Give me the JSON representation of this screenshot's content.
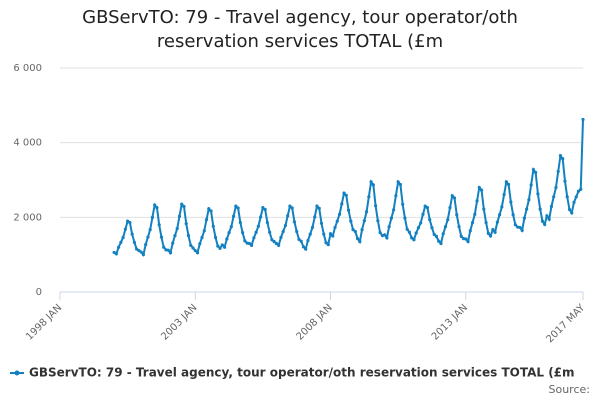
{
  "chart_data": {
    "type": "line",
    "title": "GBServTO: 79 - Travel agency, tour operator/oth reservation services TOTAL (£m",
    "source": "Source:",
    "xlim": [
      "1998-01",
      "2017-05"
    ],
    "xticks": [
      {
        "value": "1998-01",
        "label": "1998 JAN"
      },
      {
        "value": "2003-01",
        "label": "2003 JAN"
      },
      {
        "value": "2008-01",
        "label": "2008 JAN"
      },
      {
        "value": "2013-01",
        "label": "2013 JAN"
      },
      {
        "value": "2017-05",
        "label": "2017 MAY"
      }
    ],
    "ylim": [
      0,
      6000
    ],
    "yticks": [
      {
        "value": 0,
        "label": "0"
      },
      {
        "value": 2000,
        "label": "2 000"
      },
      {
        "value": 4000,
        "label": "4 000"
      },
      {
        "value": 6000,
        "label": "6 000"
      }
    ],
    "grid": true,
    "legend": "bottom-left",
    "x": [
      "2000-01",
      "2000-02",
      "2000-03",
      "2000-04",
      "2000-05",
      "2000-06",
      "2000-07",
      "2000-08",
      "2000-09",
      "2000-10",
      "2000-11",
      "2000-12",
      "2001-01",
      "2001-02",
      "2001-03",
      "2001-04",
      "2001-05",
      "2001-06",
      "2001-07",
      "2001-08",
      "2001-09",
      "2001-10",
      "2001-11",
      "2001-12",
      "2002-01",
      "2002-02",
      "2002-03",
      "2002-04",
      "2002-05",
      "2002-06",
      "2002-07",
      "2002-08",
      "2002-09",
      "2002-10",
      "2002-11",
      "2002-12",
      "2003-01",
      "2003-02",
      "2003-03",
      "2003-04",
      "2003-05",
      "2003-06",
      "2003-07",
      "2003-08",
      "2003-09",
      "2003-10",
      "2003-11",
      "2003-12",
      "2004-01",
      "2004-02",
      "2004-03",
      "2004-04",
      "2004-05",
      "2004-06",
      "2004-07",
      "2004-08",
      "2004-09",
      "2004-10",
      "2004-11",
      "2004-12",
      "2005-01",
      "2005-02",
      "2005-03",
      "2005-04",
      "2005-05",
      "2005-06",
      "2005-07",
      "2005-08",
      "2005-09",
      "2005-10",
      "2005-11",
      "2005-12",
      "2006-01",
      "2006-02",
      "2006-03",
      "2006-04",
      "2006-05",
      "2006-06",
      "2006-07",
      "2006-08",
      "2006-09",
      "2006-10",
      "2006-11",
      "2006-12",
      "2007-01",
      "2007-02",
      "2007-03",
      "2007-04",
      "2007-05",
      "2007-06",
      "2007-07",
      "2007-08",
      "2007-09",
      "2007-10",
      "2007-11",
      "2007-12",
      "2008-01",
      "2008-02",
      "2008-03",
      "2008-04",
      "2008-05",
      "2008-06",
      "2008-07",
      "2008-08",
      "2008-09",
      "2008-10",
      "2008-11",
      "2008-12",
      "2009-01",
      "2009-02",
      "2009-03",
      "2009-04",
      "2009-05",
      "2009-06",
      "2009-07",
      "2009-08",
      "2009-09",
      "2009-10",
      "2009-11",
      "2009-12",
      "2010-01",
      "2010-02",
      "2010-03",
      "2010-04",
      "2010-05",
      "2010-06",
      "2010-07",
      "2010-08",
      "2010-09",
      "2010-10",
      "2010-11",
      "2010-12",
      "2011-01",
      "2011-02",
      "2011-03",
      "2011-04",
      "2011-05",
      "2011-06",
      "2011-07",
      "2011-08",
      "2011-09",
      "2011-10",
      "2011-11",
      "2011-12",
      "2012-01",
      "2012-02",
      "2012-03",
      "2012-04",
      "2012-05",
      "2012-06",
      "2012-07",
      "2012-08",
      "2012-09",
      "2012-10",
      "2012-11",
      "2012-12",
      "2013-01",
      "2013-02",
      "2013-03",
      "2013-04",
      "2013-05",
      "2013-06",
      "2013-07",
      "2013-08",
      "2013-09",
      "2013-10",
      "2013-11",
      "2013-12",
      "2014-01",
      "2014-02",
      "2014-03",
      "2014-04",
      "2014-05",
      "2014-06",
      "2014-07",
      "2014-08",
      "2014-09",
      "2014-10",
      "2014-11",
      "2014-12",
      "2015-01",
      "2015-02",
      "2015-03",
      "2015-04",
      "2015-05",
      "2015-06",
      "2015-07",
      "2015-08",
      "2015-09",
      "2015-10",
      "2015-11",
      "2015-12",
      "2016-01",
      "2016-02",
      "2016-03",
      "2016-04",
      "2016-05",
      "2016-06",
      "2016-07",
      "2016-08",
      "2016-09",
      "2016-10",
      "2016-11",
      "2016-12",
      "2017-01",
      "2017-02",
      "2017-03",
      "2017-04",
      "2017-05"
    ],
    "series": [
      {
        "name": "GBServTO: 79 - Travel agency, tour operator/oth reservation services TOTAL (£m",
        "color": "#1380c0",
        "values": [
          1060,
          1020,
          1200,
          1330,
          1460,
          1680,
          1900,
          1860,
          1550,
          1330,
          1150,
          1110,
          1070,
          1000,
          1270,
          1470,
          1670,
          2000,
          2330,
          2260,
          1800,
          1470,
          1200,
          1130,
          1120,
          1050,
          1310,
          1510,
          1700,
          2030,
          2350,
          2290,
          1830,
          1510,
          1250,
          1180,
          1110,
          1050,
          1290,
          1460,
          1640,
          1940,
          2230,
          2170,
          1760,
          1460,
          1230,
          1170,
          1260,
          1200,
          1420,
          1590,
          1750,
          2030,
          2300,
          2250,
          1860,
          1590,
          1370,
          1310,
          1300,
          1250,
          1450,
          1600,
          1760,
          2010,
          2260,
          2210,
          1860,
          1600,
          1400,
          1350,
          1300,
          1250,
          1460,
          1620,
          1780,
          2040,
          2300,
          2250,
          1880,
          1620,
          1410,
          1360,
          1210,
          1150,
          1380,
          1550,
          1730,
          2010,
          2300,
          2240,
          1840,
          1550,
          1320,
          1270,
          1560,
          1500,
          1730,
          1900,
          2080,
          2360,
          2650,
          2590,
          2190,
          1900,
          1670,
          1620,
          1430,
          1350,
          1670,
          1910,
          2150,
          2550,
          2950,
          2870,
          2310,
          1910,
          1590,
          1510,
          1530,
          1450,
          1750,
          1980,
          2200,
          2580,
          2950,
          2880,
          2350,
          1980,
          1680,
          1600,
          1450,
          1400,
          1580,
          1720,
          1850,
          2080,
          2300,
          2260,
          1940,
          1720,
          1540,
          1490,
          1360,
          1300,
          1560,
          1750,
          1940,
          2260,
          2580,
          2520,
          2070,
          1750,
          1490,
          1430,
          1420,
          1350,
          1640,
          1860,
          2080,
          2440,
          2800,
          2730,
          2220,
          1860,
          1570,
          1500,
          1670,
          1600,
          1870,
          2070,
          2280,
          2610,
          2950,
          2880,
          2410,
          2070,
          1800,
          1740,
          1730,
          1650,
          1980,
          2220,
          2470,
          2870,
          3280,
          3200,
          2630,
          2220,
          1900,
          1810,
          2040,
          1950,
          2290,
          2550,
          2800,
          3230,
          3650,
          3570,
          2970,
          2550,
          2210,
          2120,
          2400,
          2550,
          2700,
          2750,
          4620
        ]
      }
    ]
  }
}
